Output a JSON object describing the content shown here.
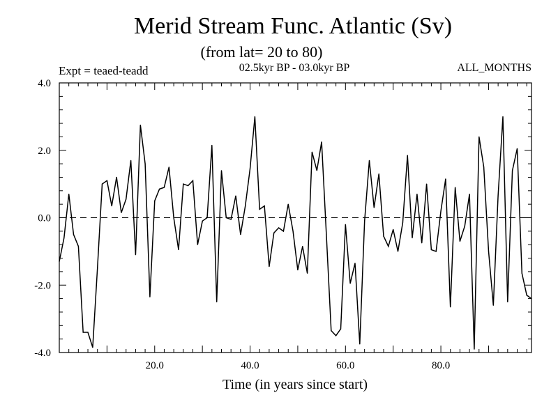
{
  "chart_data": {
    "type": "line",
    "title": "Merid Stream Func. Atlantic (Sv)",
    "subtitle": "(from lat= 20 to 80)",
    "experiment": "Expt = teaed-teadd",
    "period": "02.5kyr BP - 03.0kyr BP",
    "months": "ALL_MONTHS",
    "xlabel": "Time (in years since start)",
    "ylabel": "",
    "xlim": [
      0,
      99
    ],
    "ylim": [
      -4.0,
      4.0
    ],
    "x_ticks": [
      {
        "value": 20,
        "label": "20.0"
      },
      {
        "value": 40,
        "label": "40.0"
      },
      {
        "value": 60,
        "label": "60.0"
      },
      {
        "value": 80,
        "label": "80.0"
      }
    ],
    "y_ticks": [
      {
        "value": 4,
        "label": "4.0"
      },
      {
        "value": 2,
        "label": "2.0"
      },
      {
        "value": 0,
        "label": "0.0"
      },
      {
        "value": -2,
        "label": "-2.0"
      },
      {
        "value": -4,
        "label": "-4.0"
      }
    ],
    "zero_line": "dashed",
    "series": [
      {
        "name": "teaed-teadd",
        "x": [
          0,
          1,
          2,
          3,
          4,
          5,
          6,
          7,
          8,
          9,
          10,
          11,
          12,
          13,
          14,
          15,
          16,
          17,
          18,
          19,
          20,
          21,
          22,
          23,
          24,
          25,
          26,
          27,
          28,
          29,
          30,
          31,
          32,
          33,
          34,
          35,
          36,
          37,
          38,
          39,
          40,
          41,
          42,
          43,
          44,
          45,
          46,
          47,
          48,
          49,
          50,
          51,
          52,
          53,
          54,
          55,
          56,
          57,
          58,
          59,
          60,
          61,
          62,
          63,
          64,
          65,
          66,
          67,
          68,
          69,
          70,
          71,
          72,
          73,
          74,
          75,
          76,
          77,
          78,
          79,
          80,
          81,
          82,
          83,
          84,
          85,
          86,
          87,
          88,
          89,
          90,
          91,
          92,
          93,
          94,
          95,
          96,
          97,
          98,
          99
        ],
        "values": [
          -1.3,
          -0.6,
          0.7,
          -0.5,
          -0.85,
          -3.4,
          -3.4,
          -3.85,
          -1.5,
          1.0,
          1.1,
          0.35,
          1.2,
          0.15,
          0.55,
          1.7,
          -1.1,
          2.75,
          1.6,
          -2.35,
          0.5,
          0.85,
          0.9,
          1.5,
          0.0,
          -0.95,
          1.0,
          0.95,
          1.1,
          -0.8,
          -0.1,
          0.0,
          2.15,
          -2.5,
          1.4,
          0.0,
          -0.05,
          0.65,
          -0.5,
          0.35,
          1.45,
          3.0,
          0.25,
          0.35,
          -1.45,
          -0.45,
          -0.3,
          -0.4,
          0.4,
          -0.4,
          -1.55,
          -0.85,
          -1.65,
          1.95,
          1.4,
          2.25,
          -0.5,
          -3.35,
          -3.5,
          -3.3,
          -0.2,
          -1.95,
          -1.35,
          -3.75,
          -0.1,
          1.7,
          0.3,
          1.3,
          -0.55,
          -0.85,
          -0.35,
          -1.0,
          -0.15,
          1.85,
          -0.6,
          0.7,
          -0.75,
          1.0,
          -0.95,
          -1.0,
          0.2,
          1.15,
          -2.65,
          0.9,
          -0.7,
          -0.25,
          0.7,
          -3.9,
          2.4,
          1.5,
          -1.0,
          -2.6,
          0.65,
          3.0,
          -2.5,
          1.4,
          2.05,
          -1.65,
          -2.3,
          -2.4
        ]
      }
    ]
  }
}
